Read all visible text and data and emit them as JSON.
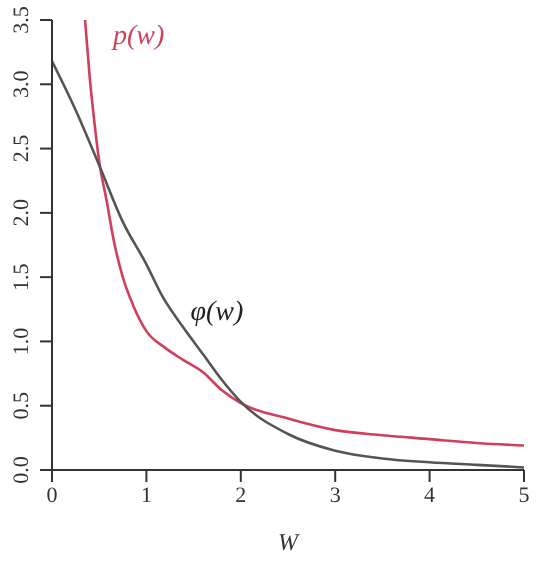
{
  "chart_data": {
    "type": "line",
    "xlabel": "W",
    "xlim": [
      0,
      5
    ],
    "xticks": [
      0,
      1,
      2,
      3,
      4,
      5
    ],
    "ylim": [
      0,
      3.5
    ],
    "yticks": [
      {
        "value": 0,
        "label": "0.0"
      },
      0.5,
      {
        "value": 1,
        "label": "1.0"
      },
      1.5,
      {
        "value": 2,
        "label": "2.0"
      },
      2.5,
      {
        "value": 3,
        "label": "3.0"
      },
      3.5
    ],
    "grid": false,
    "legend": false,
    "marker": "none",
    "line_style": "solid",
    "series": [
      {
        "name": "p(w)",
        "color": "#d0405a",
        "x": [
          0.35,
          0.4,
          0.45,
          0.5,
          0.58,
          0.65,
          0.75,
          0.86,
          1,
          1.2,
          1.38,
          1.6,
          1.8,
          2,
          2.5,
          3,
          3.5,
          4,
          4.5,
          5
        ],
        "values": [
          3.5,
          3.05,
          2.7,
          2.4,
          2.09,
          1.8,
          1.5,
          1.28,
          1.08,
          0.95,
          0.86,
          0.76,
          0.62,
          0.52,
          0.4,
          0.31,
          0.27,
          0.24,
          0.21,
          0.19
        ]
      },
      {
        "name": "φ(w)",
        "color": "#555555",
        "x": [
          0,
          0.25,
          0.5,
          0.75,
          1,
          1.17,
          1.38,
          1.6,
          1.8,
          2,
          2.5,
          3,
          3.5,
          4,
          4.5,
          5
        ],
        "values": [
          3.18,
          2.8,
          2.37,
          1.93,
          1.6,
          1.35,
          1.12,
          0.9,
          0.7,
          0.53,
          0.28,
          0.15,
          0.09,
          0.06,
          0.04,
          0.02
        ]
      }
    ]
  }
}
